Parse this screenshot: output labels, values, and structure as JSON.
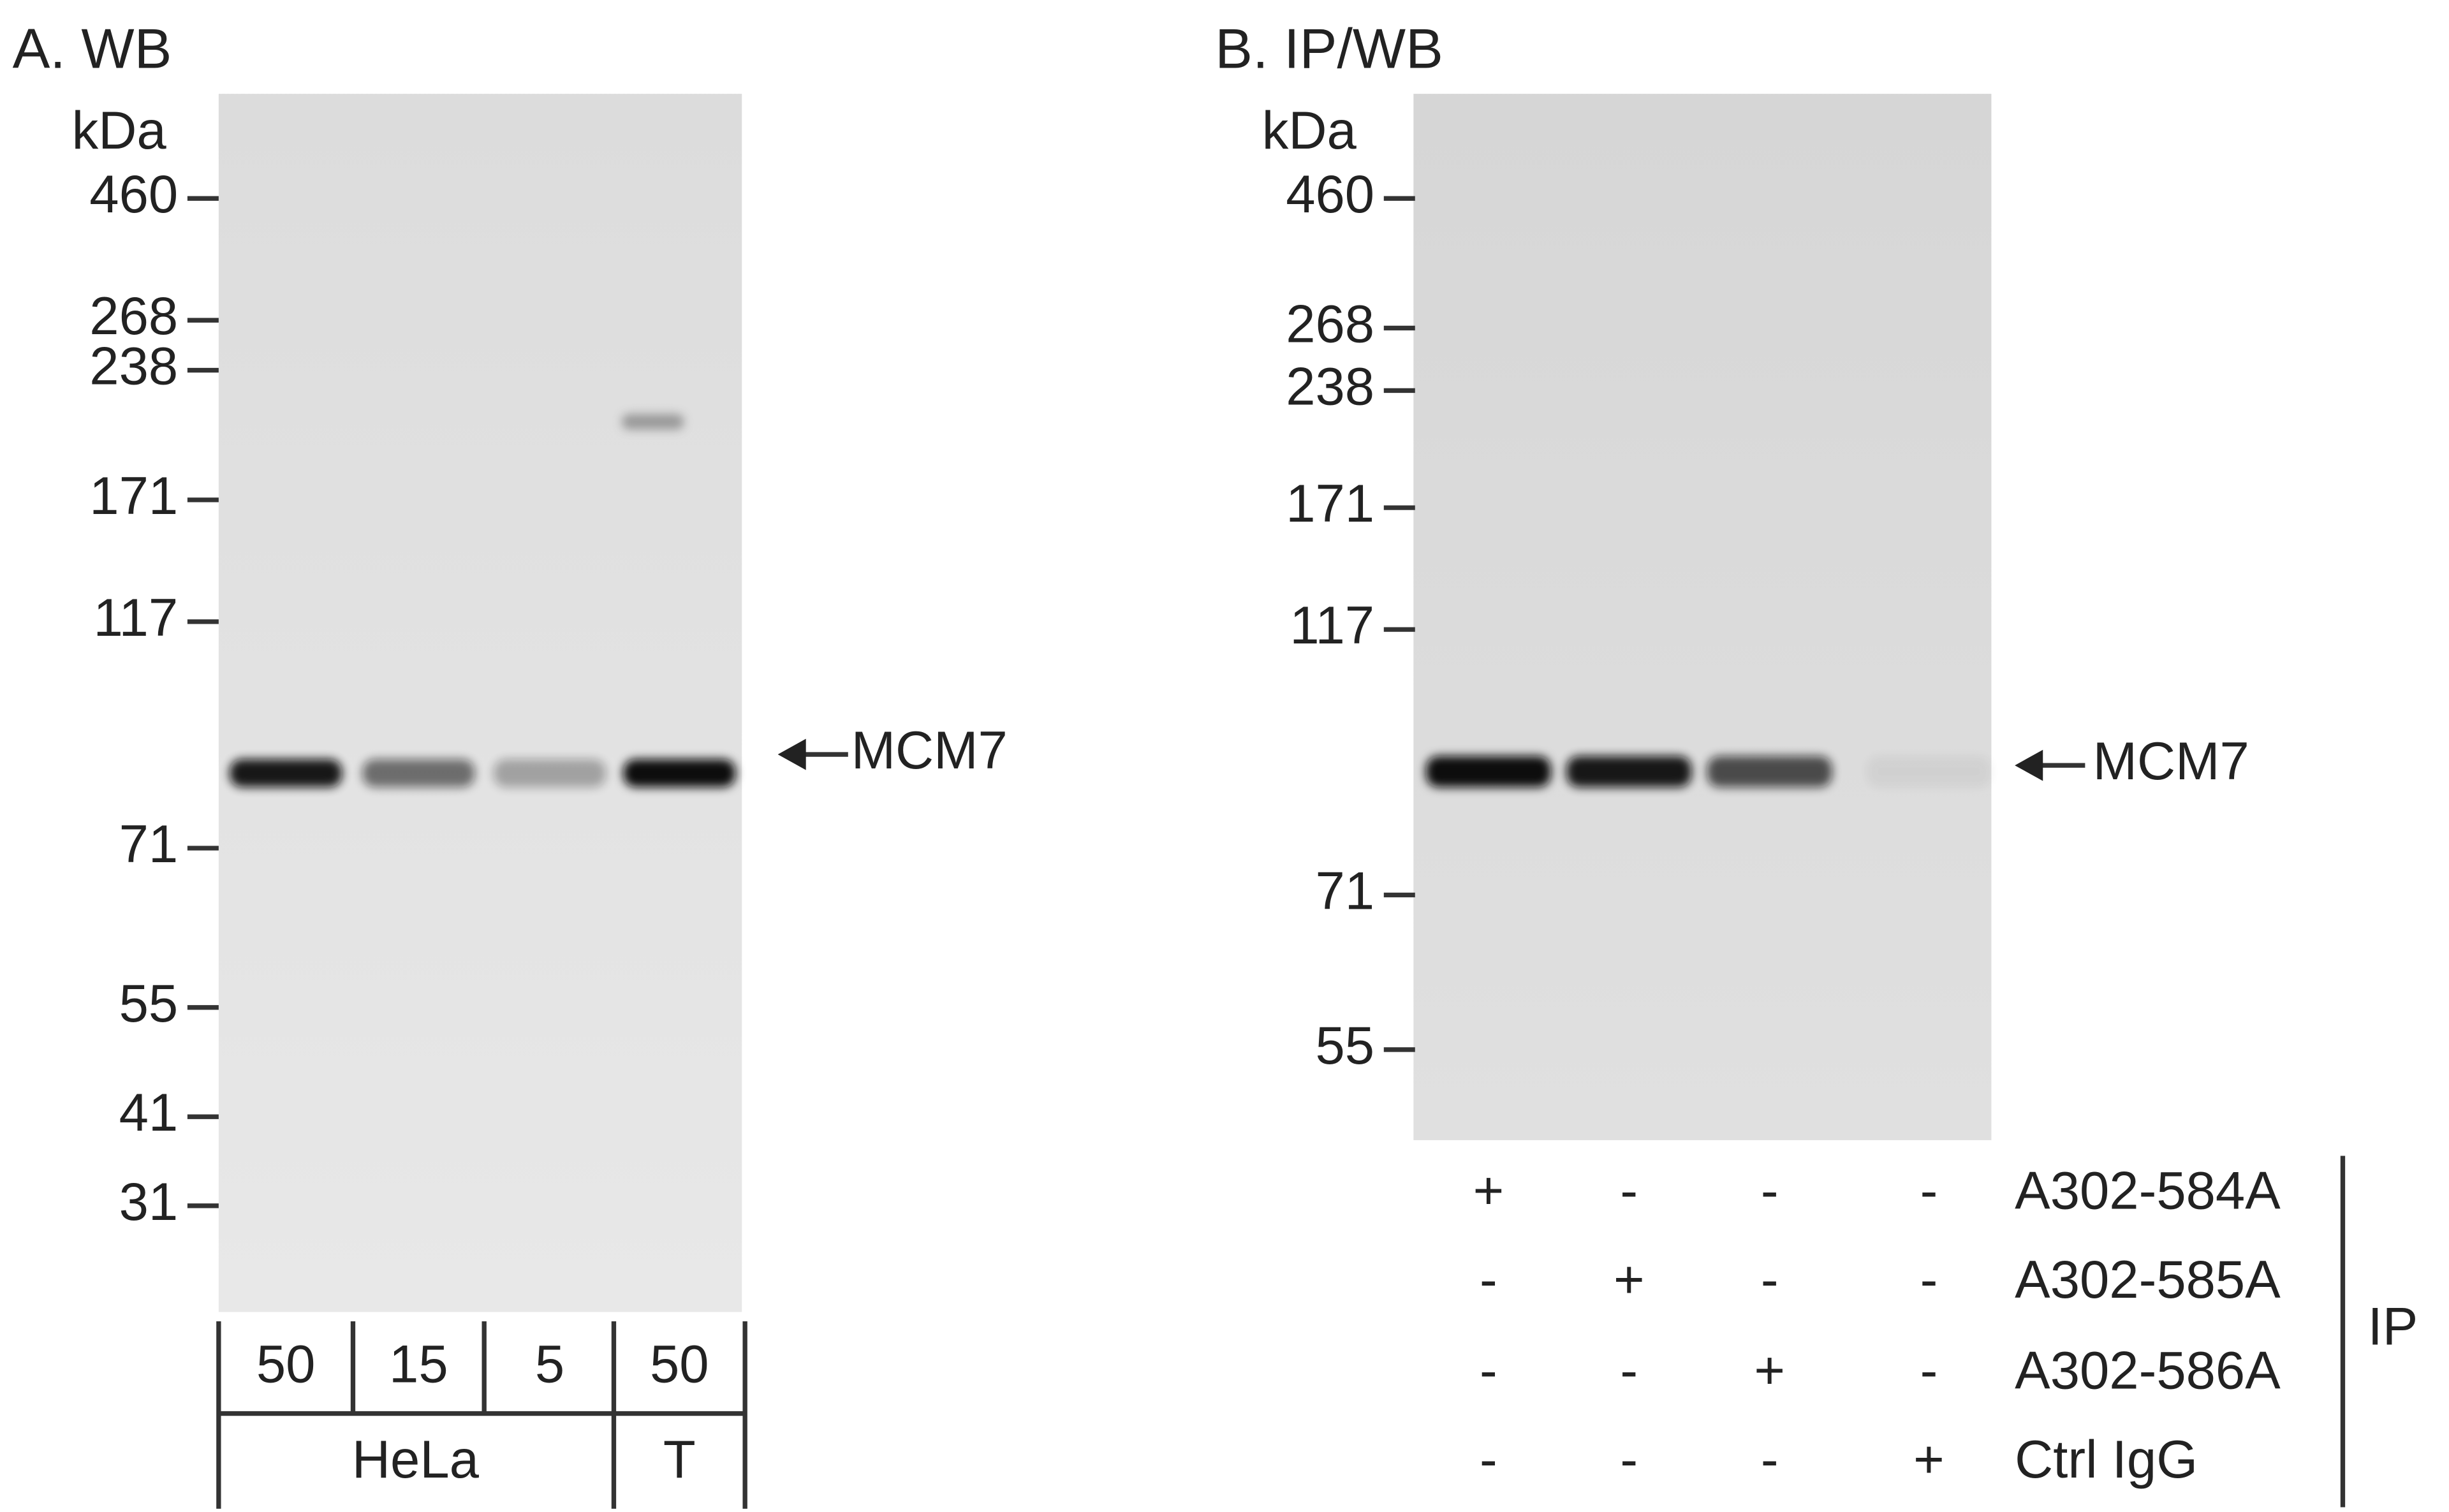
{
  "panel_a": {
    "title": "A. WB",
    "unit_label": "kDa",
    "markers": [
      "460",
      "268",
      "238",
      "171",
      "117",
      "71",
      "55",
      "41",
      "31"
    ],
    "target": "MCM7",
    "lanes": [
      "50",
      "15",
      "5",
      "50"
    ],
    "samples": [
      "HeLa",
      "T"
    ]
  },
  "panel_b": {
    "title": "B. IP/WB",
    "unit_label": "kDa",
    "markers": [
      "460",
      "268",
      "238",
      "171",
      "117",
      "71",
      "55"
    ],
    "target": "MCM7",
    "ip_rows": [
      {
        "label": "A302-584A",
        "signs": [
          "+",
          "-",
          "-",
          "-"
        ]
      },
      {
        "label": "A302-585A",
        "signs": [
          "-",
          "+",
          "-",
          "-"
        ]
      },
      {
        "label": "A302-586A",
        "signs": [
          "-",
          "-",
          "+",
          "-"
        ]
      },
      {
        "label": "Ctrl IgG",
        "signs": [
          "-",
          "-",
          "-",
          "+"
        ]
      }
    ],
    "ip_label": "IP"
  }
}
